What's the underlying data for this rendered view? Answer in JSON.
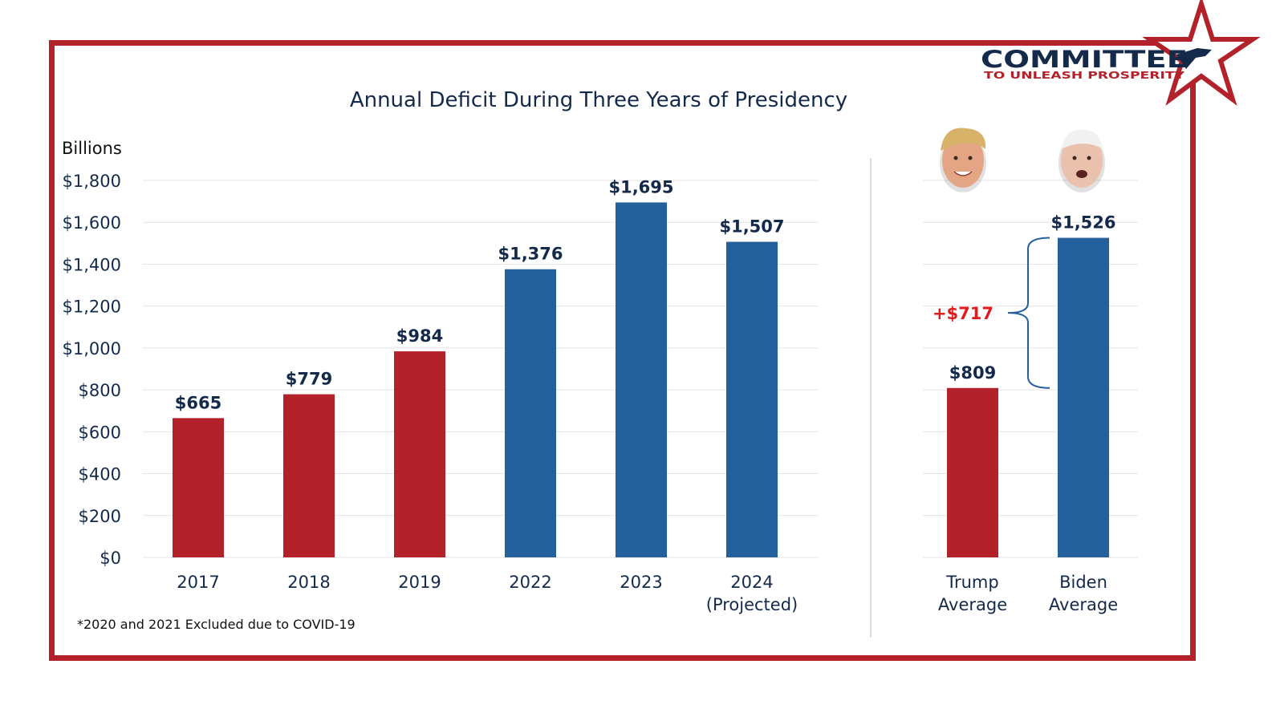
{
  "colors": {
    "frame": "#b3222a",
    "trump_red": "#b3222a",
    "biden_blue": "#23609c",
    "navy_text": "#142a4a",
    "gridline": "#e4e4e4",
    "divider": "#cfcfcf",
    "difference_red": "#e01b1b"
  },
  "logo": {
    "line1": "COMMITTEE",
    "line2": "TO UNLEASH PROSPERITY",
    "icon": "star-eagle-icon"
  },
  "footnote": "*2020 and 2021 Excluded due to COVID-19",
  "chart_data": [
    {
      "type": "bar",
      "title": "Annual Deficit During Three Years of Presidency",
      "ylabel": "Billions",
      "ylim": [
        0,
        1800
      ],
      "yticks": [
        0,
        200,
        400,
        600,
        800,
        1000,
        1200,
        1400,
        1600,
        1800
      ],
      "ytick_labels": [
        "$0",
        "$200",
        "$400",
        "$600",
        "$800",
        "$1,000",
        "$1,200",
        "$1,400",
        "$1,600",
        "$1,800"
      ],
      "grid": true,
      "categories": [
        [
          "2017"
        ],
        [
          "2018"
        ],
        [
          "2019"
        ],
        [
          "2022"
        ],
        [
          "2023"
        ],
        [
          "2024",
          "(Projected)"
        ]
      ],
      "values": [
        665,
        779,
        984,
        1376,
        1695,
        1507
      ],
      "data_labels": [
        "$665",
        "$779",
        "$984",
        "$1,376",
        "$1,695",
        "$1,507"
      ],
      "bar_colors": [
        "#b3222a",
        "#b3222a",
        "#b3222a",
        "#23609c",
        "#23609c",
        "#23609c"
      ]
    },
    {
      "type": "bar",
      "ylim": [
        0,
        1800
      ],
      "grid": true,
      "categories": [
        [
          "Trump",
          "Average"
        ],
        [
          "Biden",
          "Average"
        ]
      ],
      "values": [
        809,
        1526
      ],
      "data_labels": [
        "$809",
        "$1,526"
      ],
      "bar_colors": [
        "#b3222a",
        "#23609c"
      ],
      "portraits": [
        "trump-portrait-icon",
        "biden-portrait-icon"
      ],
      "annotation": {
        "text": "+$717",
        "spans": [
          809,
          1526
        ]
      }
    }
  ]
}
